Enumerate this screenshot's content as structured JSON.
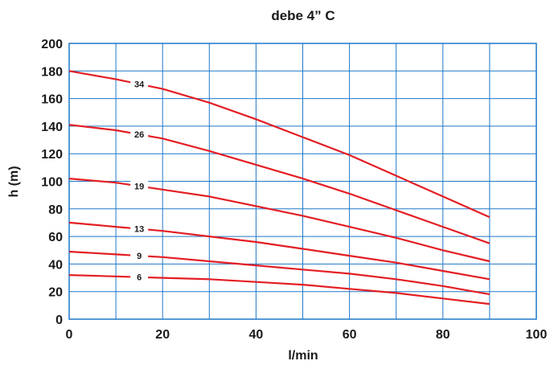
{
  "chart_data": {
    "type": "line",
    "title": "debe 4” C",
    "xlabel": "l/min",
    "ylabel": "h (m)",
    "xlim": [
      0,
      100
    ],
    "ylim": [
      0,
      200
    ],
    "xticks": [
      0,
      20,
      40,
      60,
      80,
      100
    ],
    "yticks": [
      0,
      20,
      40,
      60,
      80,
      100,
      120,
      140,
      160,
      180,
      200
    ],
    "grid": true,
    "colors": {
      "series": "#e31e24",
      "grid": "#1f78c8",
      "frame": "#1f78c8",
      "text": "#1a1a1a"
    },
    "series": [
      {
        "name": "34",
        "x": [
          0,
          10,
          20,
          30,
          40,
          50,
          60,
          70,
          80,
          90
        ],
        "y": [
          180,
          174,
          167,
          157,
          145,
          132,
          119,
          104,
          89,
          74
        ]
      },
      {
        "name": "26",
        "x": [
          0,
          10,
          20,
          30,
          40,
          50,
          60,
          70,
          80,
          90
        ],
        "y": [
          141,
          137,
          131,
          122,
          112,
          102,
          91,
          79,
          67,
          55
        ]
      },
      {
        "name": "19",
        "x": [
          0,
          10,
          20,
          30,
          40,
          50,
          60,
          70,
          80,
          90
        ],
        "y": [
          102,
          99,
          94,
          89,
          82,
          75,
          67,
          59,
          50,
          42
        ]
      },
      {
        "name": "13",
        "x": [
          0,
          10,
          20,
          30,
          40,
          50,
          60,
          70,
          80,
          90
        ],
        "y": [
          70,
          67,
          64,
          60,
          56,
          51,
          46,
          41,
          35,
          29
        ]
      },
      {
        "name": "9",
        "x": [
          0,
          10,
          20,
          30,
          40,
          50,
          60,
          70,
          80,
          90
        ],
        "y": [
          49,
          47,
          45,
          42,
          39,
          36,
          33,
          29,
          24,
          18
        ]
      },
      {
        "name": "6",
        "x": [
          0,
          10,
          20,
          30,
          40,
          50,
          60,
          70,
          80,
          90
        ],
        "y": [
          32,
          31,
          30,
          29,
          27,
          25,
          22,
          19,
          15,
          11
        ]
      }
    ]
  }
}
